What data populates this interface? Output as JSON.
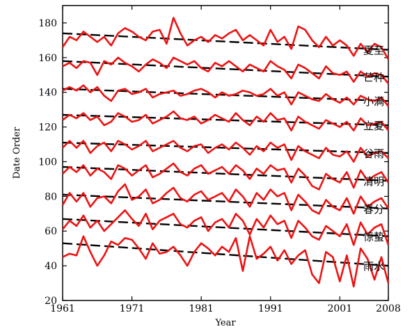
{
  "chart_data": {
    "type": "line",
    "title": "",
    "xlabel": "Year",
    "ylabel": "Date Order",
    "xlim": [
      1961,
      2008
    ],
    "ylim": [
      20,
      190
    ],
    "x_ticks": [
      1961,
      1971,
      1981,
      1991,
      2001,
      2008
    ],
    "y_ticks": [
      20,
      40,
      60,
      80,
      100,
      120,
      140,
      160,
      180
    ],
    "grid": false,
    "legend": "none",
    "colors": {
      "series": "#ee1111",
      "trend": "#000000"
    },
    "x": [
      1961,
      1962,
      1963,
      1964,
      1965,
      1966,
      1967,
      1968,
      1969,
      1970,
      1971,
      1972,
      1973,
      1974,
      1975,
      1976,
      1977,
      1978,
      1979,
      1980,
      1981,
      1982,
      1983,
      1984,
      1985,
      1986,
      1987,
      1988,
      1989,
      1990,
      1991,
      1992,
      1993,
      1994,
      1995,
      1996,
      1997,
      1998,
      1999,
      2000,
      2001,
      2002,
      2003,
      2004,
      2005,
      2006,
      2007,
      2008
    ],
    "series": [
      {
        "name": "夏至",
        "values": [
          166,
          172,
          170,
          175,
          172,
          169,
          172,
          167,
          174,
          177,
          175,
          172,
          170,
          175,
          176,
          168,
          183,
          174,
          167,
          170,
          172,
          169,
          173,
          171,
          174,
          176,
          170,
          173,
          170,
          167,
          176,
          169,
          172,
          165,
          178,
          176,
          170,
          166,
          172,
          167,
          170,
          167,
          161,
          168,
          163,
          168,
          166,
          159
        ],
        "trend": [
          174,
          164.5
        ]
      },
      {
        "name": "芒种",
        "values": [
          155,
          157,
          154,
          158,
          157,
          150,
          158,
          156,
          160,
          157,
          155,
          152,
          156,
          159,
          157,
          154,
          160,
          158,
          156,
          158,
          154,
          152,
          157,
          155,
          158,
          155,
          152,
          156,
          154,
          152,
          158,
          155,
          153,
          148,
          156,
          154,
          151,
          148,
          155,
          151,
          150,
          152,
          146,
          152,
          149,
          151,
          150,
          145
        ],
        "trend": [
          158,
          149
        ]
      },
      {
        "name": "小满",
        "values": [
          141,
          143,
          141,
          144,
          140,
          143,
          138,
          135,
          141,
          142,
          139,
          140,
          142,
          137,
          139,
          140,
          141,
          138,
          139,
          141,
          142,
          140,
          137,
          140,
          138,
          139,
          141,
          140,
          138,
          139,
          142,
          138,
          140,
          133,
          140,
          138,
          136,
          135,
          139,
          136,
          134,
          137,
          133,
          138,
          136,
          135,
          137,
          132
        ],
        "trend": [
          142,
          135
        ]
      },
      {
        "name": "立夏",
        "values": [
          124,
          127,
          125,
          128,
          124,
          126,
          121,
          123,
          128,
          126,
          123,
          124,
          127,
          122,
          124,
          126,
          129,
          125,
          124,
          126,
          122,
          124,
          127,
          125,
          123,
          128,
          124,
          121,
          126,
          123,
          128,
          124,
          125,
          118,
          126,
          123,
          121,
          119,
          124,
          122,
          120,
          123,
          118,
          125,
          121,
          122,
          123,
          118
        ],
        "trend": [
          127,
          121
        ]
      },
      {
        "name": "谷雨",
        "values": [
          108,
          112,
          108,
          112,
          105,
          109,
          111,
          106,
          112,
          110,
          107,
          109,
          112,
          106,
          108,
          110,
          112,
          108,
          106,
          109,
          110,
          105,
          108,
          110,
          107,
          111,
          108,
          104,
          109,
          106,
          111,
          108,
          110,
          101,
          109,
          106,
          104,
          102,
          108,
          104,
          103,
          106,
          100,
          108,
          103,
          105,
          106,
          102
        ],
        "trend": [
          111,
          105
        ]
      },
      {
        "name": "清明",
        "values": [
          93,
          97,
          94,
          98,
          92,
          96,
          94,
          90,
          98,
          96,
          92,
          95,
          98,
          91,
          93,
          96,
          99,
          94,
          92,
          96,
          98,
          93,
          95,
          97,
          93,
          98,
          95,
          90,
          96,
          93,
          98,
          95,
          96,
          88,
          96,
          92,
          86,
          84,
          93,
          90,
          88,
          94,
          85,
          95,
          89,
          92,
          94,
          88
        ],
        "trend": [
          97,
          89
        ]
      },
      {
        "name": "春分",
        "values": [
          75,
          82,
          77,
          82,
          74,
          79,
          80,
          76,
          83,
          87,
          78,
          80,
          84,
          76,
          78,
          82,
          85,
          79,
          77,
          81,
          83,
          78,
          80,
          82,
          77,
          84,
          80,
          74,
          82,
          78,
          84,
          80,
          82,
          72,
          81,
          77,
          72,
          70,
          78,
          74,
          72,
          79,
          70,
          80,
          74,
          77,
          79,
          73
        ],
        "trend": [
          81,
          73
        ]
      },
      {
        "name": "惊蛰",
        "values": [
          61,
          66,
          63,
          69,
          62,
          66,
          60,
          64,
          68,
          72,
          67,
          63,
          70,
          61,
          66,
          68,
          70,
          64,
          62,
          66,
          68,
          60,
          65,
          67,
          62,
          70,
          66,
          58,
          67,
          62,
          69,
          64,
          66,
          56,
          66,
          62,
          57,
          55,
          63,
          60,
          57,
          64,
          52,
          65,
          58,
          62,
          64,
          52
        ],
        "trend": [
          67,
          57
        ]
      },
      {
        "name": "雨水",
        "values": [
          45,
          47,
          46,
          57,
          48,
          40,
          46,
          54,
          52,
          56,
          55,
          50,
          44,
          53,
          47,
          48,
          51,
          46,
          40,
          48,
          53,
          50,
          46,
          51,
          48,
          56,
          37,
          57,
          44,
          47,
          51,
          43,
          49,
          41,
          46,
          49,
          35,
          30,
          48,
          45,
          31,
          46,
          28,
          50,
          44,
          32,
          45,
          30
        ],
        "trend": [
          53,
          40
        ]
      }
    ]
  }
}
